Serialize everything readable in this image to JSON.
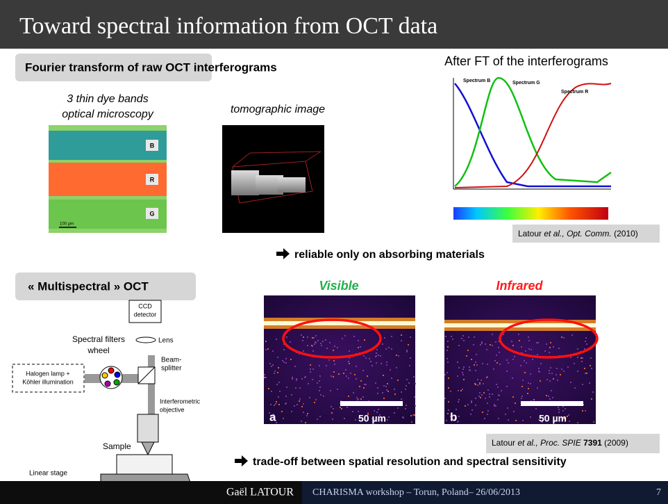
{
  "header": {
    "title": "Toward spectral information from OCT data"
  },
  "section1": {
    "heading": "Fourier transform of raw OCT interferograms",
    "microscopy": {
      "caption": [
        "3 thin dye bands",
        "optical microscopy"
      ],
      "bands": [
        "B",
        "R",
        "G"
      ],
      "scale": "100 µm"
    },
    "tomography": {
      "caption": "tomographic image"
    },
    "spectra": {
      "caption": "After FT of the interferograms",
      "legend": [
        "Spectrum B",
        "Spectrum G",
        "Spectrum R"
      ]
    },
    "reference": {
      "author": "Latour",
      "etal": "et al.,",
      "journal": "Opt. Comm.",
      "year": "(2010)"
    },
    "conclusion": "reliable only on absorbing materials"
  },
  "section2": {
    "heading": "« Multispectral » OCT",
    "diagram": {
      "ccd": [
        "CCD",
        "detector"
      ],
      "lens": "Lens",
      "filters": [
        "Spectral filters",
        "wheel"
      ],
      "beamsplitter": [
        "Beam-",
        "splitter"
      ],
      "lamp": [
        "Halogen lamp +",
        "Köhler illumination"
      ],
      "objective": [
        "Interferometric",
        "objective"
      ],
      "sample": "Sample",
      "stage": "Linear stage"
    },
    "images": [
      {
        "label": "Visible",
        "letter": "a",
        "scale": "50 µm"
      },
      {
        "label": "Infrared",
        "letter": "b",
        "scale": "50 µm"
      }
    ],
    "reference": {
      "author": "Latour",
      "etal": "et al.,",
      "journal": "Proc. SPIE",
      "volume": "7391",
      "year": "(2009)"
    },
    "conclusion": "trade-off between spatial resolution and spectral sensitivity"
  },
  "footer": {
    "author": "Gaël LATOUR",
    "event": "CHARISMA workshop – Torun, Poland– 26/06/2013",
    "page": "7"
  }
}
